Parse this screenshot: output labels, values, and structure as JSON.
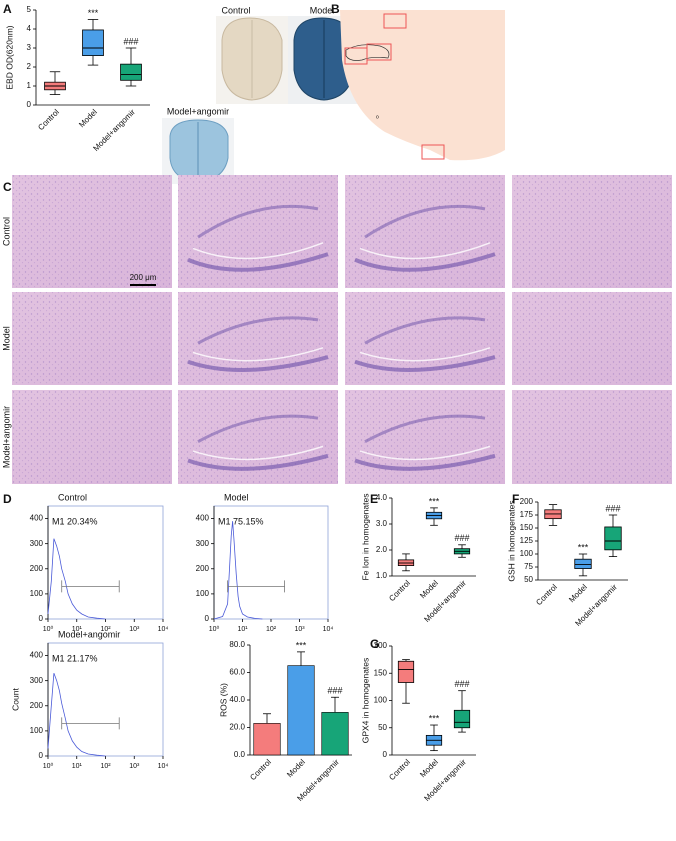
{
  "panel_labels": [
    "A",
    "B",
    "C",
    "D",
    "E",
    "F",
    "G"
  ],
  "images": {
    "brain_labels": [
      "Control",
      "Model",
      "Model+angomir"
    ],
    "section_mark": "o",
    "histology_rows": [
      "Control",
      "Model",
      "Model+angomir"
    ],
    "scale_bar": "200 μm"
  },
  "chart_data": [
    {
      "type": "box",
      "ylabel": "EBD OD(620nm)",
      "categories": [
        "Control",
        "Model",
        "Model+angomir"
      ],
      "boxes": [
        {
          "min": 0.55,
          "q1": 0.8,
          "median": 1.0,
          "q3": 1.2,
          "max": 1.75
        },
        {
          "min": 2.1,
          "q1": 2.6,
          "median": 3.0,
          "q3": 3.95,
          "max": 4.5
        },
        {
          "min": 1.0,
          "q1": 1.3,
          "median": 1.6,
          "q3": 2.15,
          "max": 3.0
        }
      ],
      "colors": [
        "#f47c7c",
        "#4a9ee8",
        "#17a578"
      ],
      "annotations": [
        null,
        "***",
        "###"
      ],
      "ylim": [
        0,
        5
      ],
      "yticks": [
        0,
        1,
        2,
        3,
        4,
        5
      ]
    },
    {
      "type": "line",
      "title": "Control",
      "xscale": "log",
      "xlim": [
        1,
        10000
      ],
      "ylim": [
        0,
        450
      ],
      "xticks": [
        {
          "value": 1,
          "label": "10⁰"
        },
        {
          "value": 10,
          "label": "10¹"
        },
        {
          "value": 100,
          "label": "10²"
        },
        {
          "value": 1000,
          "label": "10³"
        },
        {
          "value": 10000,
          "label": "10⁴"
        }
      ],
      "yticks": [
        0,
        100,
        200,
        300,
        400
      ],
      "x": [
        1,
        1.3,
        1.6,
        2,
        2.5,
        3,
        4,
        5,
        7,
        10,
        15,
        25,
        50,
        100
      ],
      "values": [
        20,
        150,
        320,
        290,
        250,
        200,
        150,
        100,
        60,
        35,
        20,
        8,
        3,
        0
      ],
      "color": "#4a5ad8",
      "gate": {
        "x": [
          3,
          300
        ],
        "y": 130
      },
      "gate_label": "M1 20.34%"
    },
    {
      "type": "line",
      "title": "Model",
      "xscale": "log",
      "xlim": [
        1,
        10000
      ],
      "ylim": [
        0,
        450
      ],
      "xticks": [
        {
          "value": 1,
          "label": "10⁰"
        },
        {
          "value": 10,
          "label": "10¹"
        },
        {
          "value": 100,
          "label": "10²"
        },
        {
          "value": 1000,
          "label": "10³"
        },
        {
          "value": 10000,
          "label": "10⁴"
        }
      ],
      "yticks": [
        0,
        100,
        200,
        300,
        400
      ],
      "x": [
        1,
        2,
        3,
        3.5,
        4,
        4.5,
        5,
        6,
        7,
        8,
        10,
        15,
        25,
        50
      ],
      "values": [
        0,
        10,
        60,
        200,
        330,
        390,
        320,
        180,
        90,
        50,
        20,
        8,
        3,
        0
      ],
      "color": "#4a5ad8",
      "gate": {
        "x": [
          3,
          300
        ],
        "y": 130
      },
      "gate_label": "M1 75.15%"
    },
    {
      "type": "line",
      "title": "Model+angomir",
      "ylabel": "Count",
      "xscale": "log",
      "xlim": [
        1,
        10000
      ],
      "ylim": [
        0,
        450
      ],
      "xticks": [
        {
          "value": 1,
          "label": "10⁰"
        },
        {
          "value": 10,
          "label": "10¹"
        },
        {
          "value": 100,
          "label": "10²"
        },
        {
          "value": 1000,
          "label": "10³"
        },
        {
          "value": 10000,
          "label": "10⁴"
        }
      ],
      "yticks": [
        0,
        100,
        200,
        300,
        400
      ],
      "x": [
        1,
        1.3,
        1.6,
        2,
        2.5,
        3,
        4,
        5,
        7,
        10,
        15,
        25,
        50,
        100
      ],
      "values": [
        30,
        200,
        330,
        300,
        260,
        210,
        150,
        100,
        60,
        35,
        18,
        8,
        3,
        0
      ],
      "color": "#4a5ad8",
      "gate": {
        "x": [
          3,
          300
        ],
        "y": 130
      },
      "gate_label": "M1 21.17%"
    },
    {
      "type": "bar",
      "ylabel": "ROS (%)",
      "categories": [
        "Control",
        "Model",
        "Model+angomir"
      ],
      "values": [
        23,
        65,
        31
      ],
      "errors": [
        7,
        10,
        11
      ],
      "colors": [
        "#f47c7c",
        "#4a9ee8",
        "#17a578"
      ],
      "annotations": [
        null,
        "***",
        "###"
      ],
      "ylim": [
        0,
        80
      ],
      "yticks": [
        {
          "value": 0,
          "label": "0.0"
        },
        {
          "value": 20,
          "label": "20.0"
        },
        {
          "value": 40,
          "label": "40.0"
        },
        {
          "value": 60,
          "label": "60.0"
        },
        {
          "value": 80,
          "label": "80.0"
        }
      ]
    },
    {
      "type": "box",
      "ylabel": "Fe Ion in homogenates",
      "categories": [
        "Control",
        "Model",
        "Model+angomir"
      ],
      "boxes": [
        {
          "min": 1.2,
          "q1": 1.4,
          "median": 1.5,
          "q3": 1.62,
          "max": 1.85
        },
        {
          "min": 2.95,
          "q1": 3.2,
          "median": 3.33,
          "q3": 3.45,
          "max": 3.62
        },
        {
          "min": 1.72,
          "q1": 1.85,
          "median": 1.95,
          "q3": 2.05,
          "max": 2.2
        }
      ],
      "colors": [
        "#f47c7c",
        "#4a9ee8",
        "#17a578"
      ],
      "annotations": [
        null,
        "***",
        "###"
      ],
      "ylim": [
        1,
        4
      ],
      "yticks": [
        {
          "value": 1,
          "label": "1.0"
        },
        {
          "value": 2,
          "label": "2.0"
        },
        {
          "value": 3,
          "label": "3.0"
        },
        {
          "value": 4,
          "label": "4.0"
        }
      ]
    },
    {
      "type": "box",
      "ylabel": "GSH in homogenates",
      "categories": [
        "Control",
        "Model",
        "Model+angomir"
      ],
      "boxes": [
        {
          "min": 155,
          "q1": 168,
          "median": 177,
          "q3": 185,
          "max": 195
        },
        {
          "min": 58,
          "q1": 72,
          "median": 80,
          "q3": 90,
          "max": 100
        },
        {
          "min": 95,
          "q1": 108,
          "median": 125,
          "q3": 152,
          "max": 175
        }
      ],
      "colors": [
        "#f47c7c",
        "#4a9ee8",
        "#17a578"
      ],
      "annotations": [
        null,
        "***",
        "###"
      ],
      "ylim": [
        50,
        200
      ],
      "yticks": [
        50,
        75,
        100,
        125,
        150,
        175,
        200
      ]
    },
    {
      "type": "box",
      "ylabel": "GPX4 in homogenates",
      "categories": [
        "Control",
        "Model",
        "Model+angomir"
      ],
      "boxes": [
        {
          "min": 95,
          "q1": 133,
          "median": 157,
          "q3": 172,
          "max": 175
        },
        {
          "min": 8,
          "q1": 18,
          "median": 27,
          "q3": 36,
          "max": 55
        },
        {
          "min": 42,
          "q1": 50,
          "median": 60,
          "q3": 82,
          "max": 118
        }
      ],
      "colors": [
        "#f47c7c",
        "#4a9ee8",
        "#17a578"
      ],
      "annotations": [
        null,
        "***",
        "###"
      ],
      "ylim": [
        0,
        200
      ],
      "yticks": [
        0,
        50,
        100,
        150,
        200
      ]
    }
  ]
}
